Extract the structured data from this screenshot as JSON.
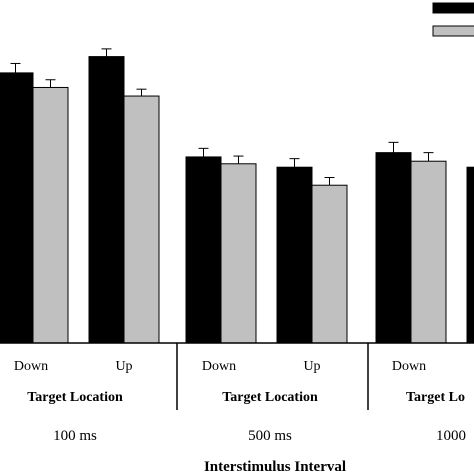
{
  "chart_data": {
    "type": "bar",
    "groups": [
      {
        "isi_label": "100 ms",
        "group_label": "Target Location",
        "categories": [
          "Down",
          "Up"
        ],
        "series_values": [
          [
            315,
            298
          ],
          [
            334,
            288
          ]
        ],
        "errors": [
          [
            11,
            9
          ],
          [
            9,
            8
          ]
        ]
      },
      {
        "isi_label": "500 ms",
        "group_label": "Target Location",
        "categories": [
          "Down",
          "Up"
        ],
        "series_values": [
          [
            217,
            209
          ],
          [
            205,
            184
          ]
        ],
        "errors": [
          [
            10,
            9
          ],
          [
            10,
            9
          ]
        ]
      },
      {
        "isi_label": "1000",
        "group_label": "Target Lo",
        "categories": [
          "Down",
          ""
        ],
        "series_values": [
          [
            222,
            212
          ],
          [
            205,
            null
          ]
        ],
        "errors": [
          [
            12,
            10
          ],
          [
            10,
            null
          ]
        ]
      }
    ],
    "series": [
      {
        "color": "#000000"
      },
      {
        "color": "#c0c0c0"
      }
    ],
    "xlabel": "Interstimulus Interval",
    "ylabel": "",
    "ylim": [
      0,
      400
    ]
  }
}
